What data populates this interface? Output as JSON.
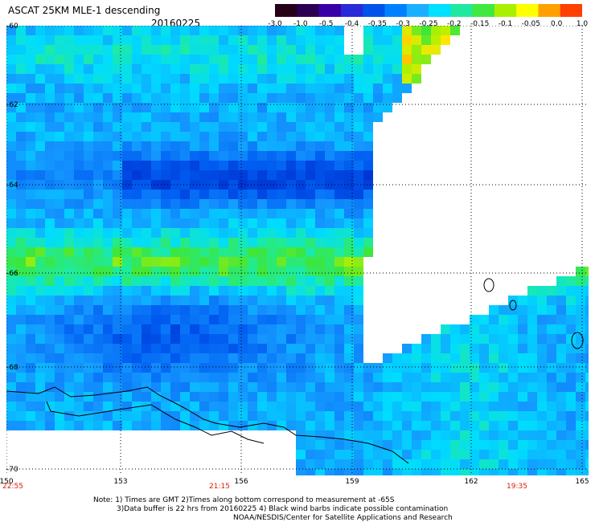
{
  "header": {
    "title": "ASCAT 25KM MLE-1 descending",
    "date": "20160225"
  },
  "colorbar": {
    "labels": [
      "-3.0",
      "-1.0",
      "-0.5",
      "-0.4",
      "-0.35",
      "-0.3",
      "-0.25",
      "-0.2",
      "-0.15",
      "-0.1",
      "-0.05",
      "0.0",
      "1.0"
    ],
    "colors": [
      "#260018",
      "#2a0052",
      "#3a00a8",
      "#2a2ad8",
      "#0052e8",
      "#0080ff",
      "#1ab0ff",
      "#00e0ff",
      "#20e8a0",
      "#40e840",
      "#a8f000",
      "#ffff00",
      "#ffa000",
      "#ff4000"
    ]
  },
  "map": {
    "lat_labels": [
      "-60",
      "-62",
      "-64",
      "-66",
      "-68",
      "-70"
    ],
    "lon_labels": [
      "150",
      "153",
      "156",
      "159",
      "162",
      "165"
    ],
    "time_labels": [
      "22:55",
      "21:15",
      "19:35"
    ]
  },
  "footer": {
    "note1": "Note: 1) Times are GMT 2)Times along bottom correspond to measurement at -65S",
    "note2": "3)Data buffer is 22 hrs from 20160225 4) Black wind barbs indicate possible contamination",
    "credit": "NOAA/NESDIS/Center for Satellite Applications and Research"
  }
}
